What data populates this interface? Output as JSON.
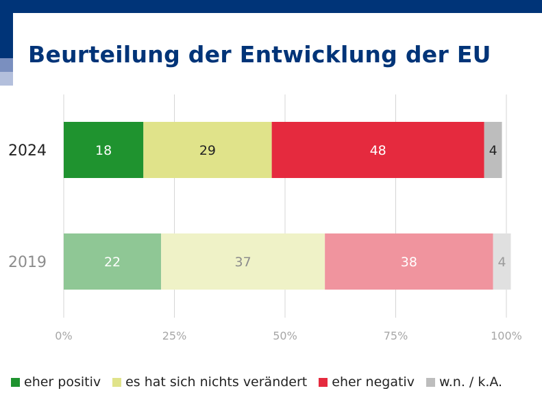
{
  "title": "Beurteilung der Entwicklung der EU",
  "chart_data": {
    "type": "bar",
    "orientation": "horizontal",
    "stacked": true,
    "title": "Beurteilung der Entwicklung der EU",
    "categories": [
      "2024",
      "2019"
    ],
    "series": [
      {
        "name": "eher positiv",
        "values": [
          18,
          22
        ],
        "color_2024": "#1f932f",
        "color_2019": "#8fc795",
        "text_2024": "#ffffff",
        "text_2019": "#ffffff"
      },
      {
        "name": "es hat sich nichts verändert",
        "values": [
          29,
          37
        ],
        "color_2024": "#e0e38a",
        "color_2019": "#eff2c7",
        "text_2024": "#222222",
        "text_2019": "#8c8c8c"
      },
      {
        "name": "eher negativ",
        "values": [
          48,
          38
        ],
        "color_2024": "#e52a3e",
        "color_2019": "#f0949e",
        "text_2024": "#ffffff",
        "text_2019": "#ffffff"
      },
      {
        "name": "w.n. / k.A.",
        "values": [
          4,
          4
        ],
        "color_2024": "#bdbdbd",
        "color_2019": "#e0e0e0",
        "text_2024": "#222222",
        "text_2019": "#9a9a9a"
      }
    ],
    "category_label_colors": {
      "2024": "#222222",
      "2019": "#8c8c8c"
    },
    "xlim": [
      0,
      100
    ],
    "xticks": [
      "0%",
      "25%",
      "50%",
      "75%",
      "100%"
    ],
    "grid": true,
    "legend_position": "bottom"
  },
  "legend": [
    {
      "label": "eher positiv",
      "color": "#1f932f"
    },
    {
      "label": "es hat sich nichts verändert",
      "color": "#e0e38a"
    },
    {
      "label": "eher negativ",
      "color": "#e52a3e"
    },
    {
      "label": "w.n. / k.A.",
      "color": "#bdbdbd"
    }
  ]
}
